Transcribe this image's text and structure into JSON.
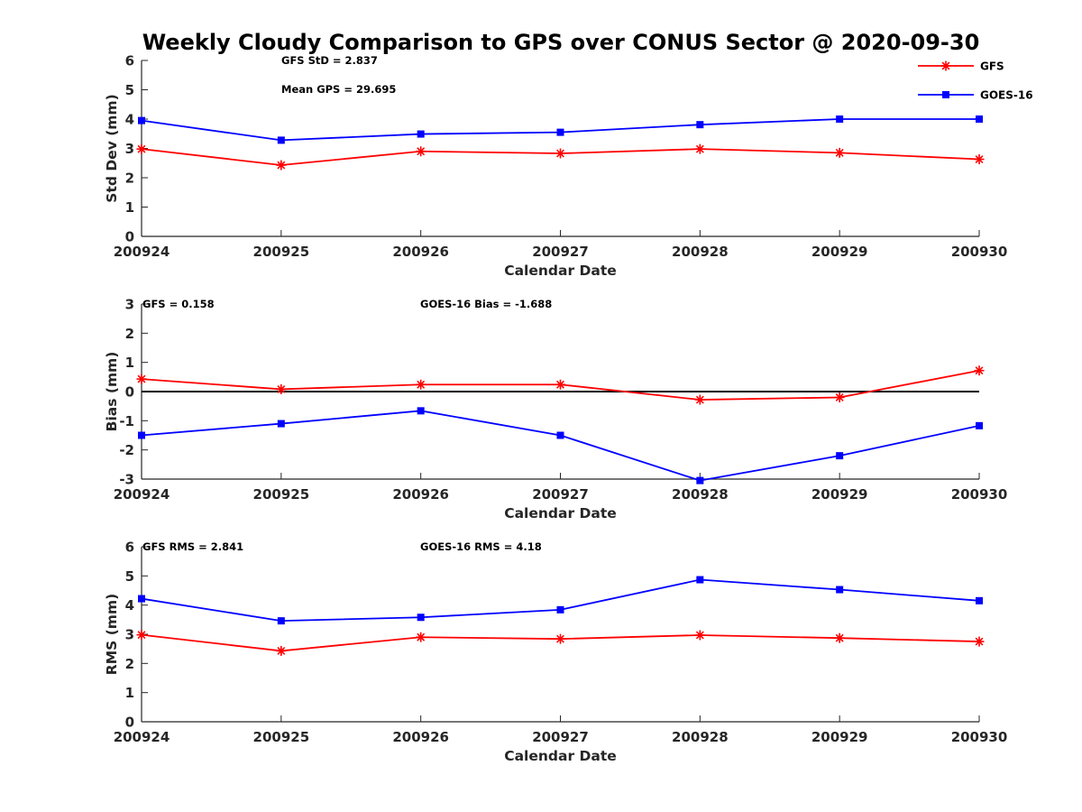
{
  "chart_data": {
    "type": "line",
    "title": "Weekly Cloudy Comparison to GPS over CONUS Sector @ 2020-09-30",
    "colors": {
      "GFS": "#ff0000",
      "GOES-16": "#0000ff",
      "zero_line": "#000000"
    },
    "legend": {
      "placement": "top-right",
      "entries": [
        {
          "name": "GFS",
          "marker": "asterisk",
          "color": "#ff0000"
        },
        {
          "name": "GOES-16",
          "marker": "square",
          "color": "#0000ff"
        }
      ]
    },
    "subplots": [
      {
        "id": "stddev",
        "ylabel": "Std Dev (mm)",
        "xlabel": "Calendar Date",
        "xticks": [
          "200924",
          "200925",
          "200926",
          "200927",
          "200928",
          "200929",
          "200930"
        ],
        "ylim": [
          0,
          6
        ],
        "yticks": [
          "0",
          "1",
          "2",
          "3",
          "4",
          "5",
          "6"
        ],
        "zero_line": false,
        "annotations": [
          "GFS StD = 2.837",
          "Mean GPS = 29.695"
        ],
        "series": [
          {
            "name": "GFS",
            "marker": "asterisk",
            "values": [
              2.98,
              2.43,
              2.9,
              2.83,
              2.98,
              2.85,
              2.63
            ]
          },
          {
            "name": "GOES-16",
            "marker": "square",
            "values": [
              3.95,
              3.28,
              3.49,
              3.55,
              3.81,
              4.0,
              4.0
            ]
          }
        ]
      },
      {
        "id": "bias",
        "ylabel": "Bias (mm)",
        "xlabel": "Calendar Date",
        "xticks": [
          "200924",
          "200925",
          "200926",
          "200927",
          "200928",
          "200929",
          "200930"
        ],
        "ylim": [
          -3,
          3
        ],
        "yticks": [
          "-3",
          "-2",
          "-1",
          "0",
          "1",
          "2",
          "3"
        ],
        "zero_line": true,
        "annotations": [
          "GFS = 0.158",
          "GOES-16 Bias  = -1.688"
        ],
        "series": [
          {
            "name": "GFS",
            "marker": "asterisk",
            "values": [
              0.43,
              0.08,
              0.24,
              0.24,
              -0.28,
              -0.2,
              0.72
            ]
          },
          {
            "name": "GOES-16",
            "marker": "square",
            "values": [
              -1.5,
              -1.1,
              -0.66,
              -1.5,
              -3.05,
              -2.2,
              -1.17
            ]
          }
        ]
      },
      {
        "id": "rms",
        "ylabel": "RMS (mm)",
        "xlabel": "Calendar Date",
        "xticks": [
          "200924",
          "200925",
          "200926",
          "200927",
          "200928",
          "200929",
          "200930"
        ],
        "ylim": [
          0,
          6
        ],
        "yticks": [
          "0",
          "1",
          "2",
          "3",
          "4",
          "5",
          "6"
        ],
        "zero_line": false,
        "annotations": [
          "GFS RMS = 2.841",
          "GOES-16 RMS = 4.18"
        ],
        "series": [
          {
            "name": "GFS",
            "marker": "asterisk",
            "values": [
              2.98,
              2.43,
              2.9,
              2.84,
              2.97,
              2.87,
              2.75
            ]
          },
          {
            "name": "GOES-16",
            "marker": "square",
            "values": [
              4.22,
              3.46,
              3.58,
              3.84,
              4.87,
              4.53,
              4.15
            ]
          }
        ]
      }
    ]
  }
}
